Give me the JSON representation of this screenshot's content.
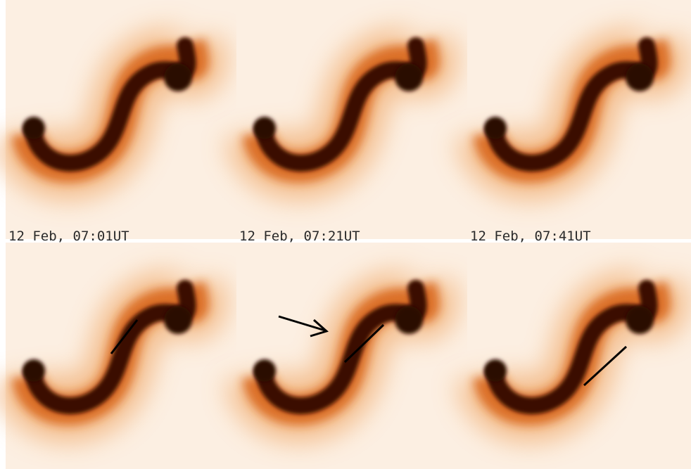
{
  "panels": [
    {
      "label": "12 Feb, 07:01UT"
    },
    {
      "label": "12 Feb, 07:21UT"
    },
    {
      "label": "12 Feb, 07:41UT"
    }
  ]
}
